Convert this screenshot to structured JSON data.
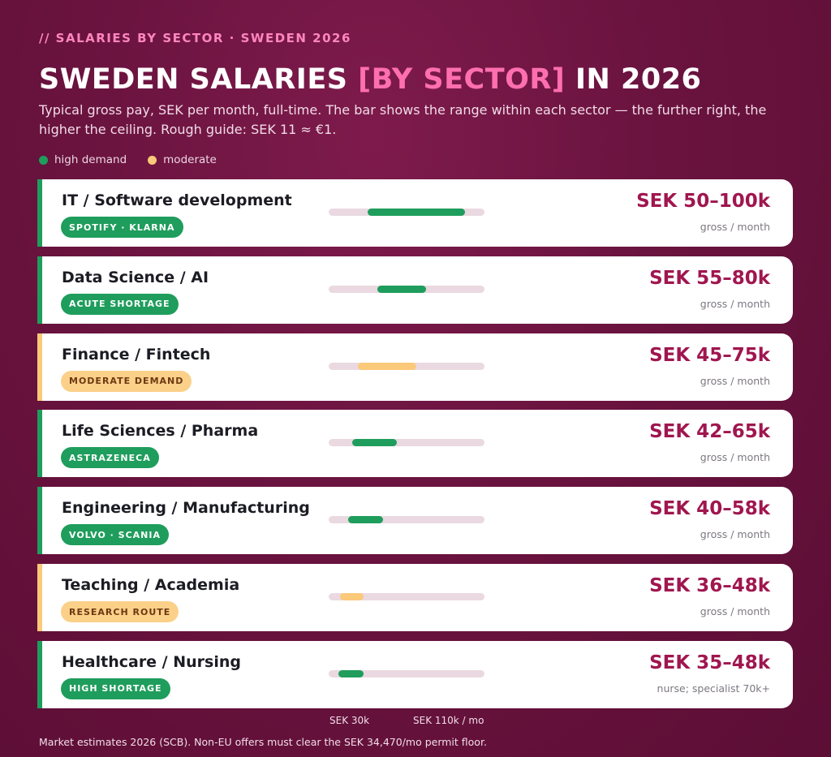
{
  "header": {
    "eyebrow": "// SALARIES BY SECTOR · SWEDEN 2026",
    "title_part1": "SWEDEN SALARIES ",
    "title_accent": "[BY SECTOR]",
    "title_part2": " IN 2026",
    "subtitle": "Typical gross pay, SEK per month, full-time. The bar shows the range within each sector — the further right, the higher the ceiling. Rough guide: SEK 11 ≈ €1."
  },
  "legend": {
    "high": "high demand",
    "moderate": "moderate"
  },
  "colors": {
    "high": "#1f9d5c",
    "moderate": "#fbc97a",
    "range_text": "#a0164f",
    "background": "#6a133f"
  },
  "chart_data": {
    "type": "range-bar",
    "unit": "SEK thousand per month",
    "xlim": [
      30,
      110
    ],
    "axis_labels": {
      "min": "SEK 30k",
      "max": "SEK 110k / mo"
    },
    "sectors": [
      {
        "name": "IT / Software development",
        "badge": "SPOTIFY · KLARNA",
        "demand": "high",
        "low": 50,
        "high": 100,
        "range_label": "SEK 50–100k",
        "note": "gross / month"
      },
      {
        "name": "Data Science / AI",
        "badge": "ACUTE SHORTAGE",
        "demand": "high",
        "low": 55,
        "high": 80,
        "range_label": "SEK 55–80k",
        "note": "gross / month"
      },
      {
        "name": "Finance / Fintech",
        "badge": "MODERATE DEMAND",
        "demand": "moderate",
        "low": 45,
        "high": 75,
        "range_label": "SEK 45–75k",
        "note": "gross / month"
      },
      {
        "name": "Life Sciences / Pharma",
        "badge": "ASTRAZENECA",
        "demand": "high",
        "low": 42,
        "high": 65,
        "range_label": "SEK 42–65k",
        "note": "gross / month"
      },
      {
        "name": "Engineering / Manufacturing",
        "badge": "VOLVO · SCANIA",
        "demand": "high",
        "low": 40,
        "high": 58,
        "range_label": "SEK 40–58k",
        "note": "gross / month"
      },
      {
        "name": "Teaching / Academia",
        "badge": "RESEARCH ROUTE",
        "demand": "moderate",
        "low": 36,
        "high": 48,
        "range_label": "SEK 36–48k",
        "note": "gross / month"
      },
      {
        "name": "Healthcare / Nursing",
        "badge": "HIGH SHORTAGE",
        "demand": "high",
        "low": 35,
        "high": 48,
        "range_label": "SEK 35–48k",
        "note": "nurse; specialist 70k+"
      }
    ]
  },
  "footer": "Market estimates 2026 (SCB). Non-EU offers must clear the SEK 34,470/mo permit floor."
}
